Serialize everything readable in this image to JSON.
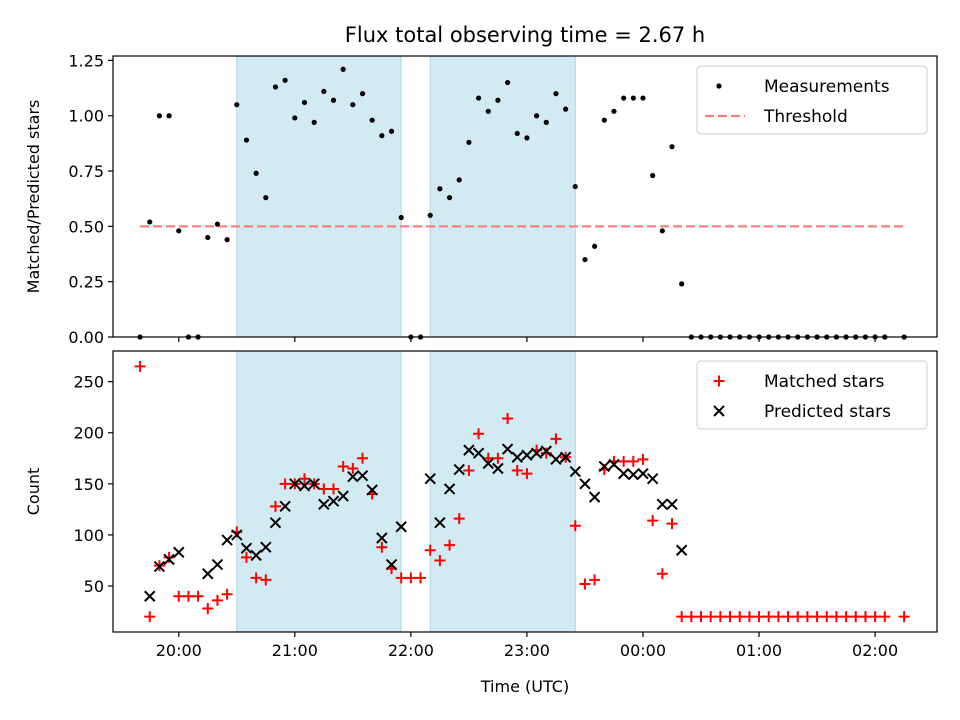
{
  "title": "Flux total observing time = 2.67 h",
  "chart_data": [
    {
      "type": "scatter",
      "ylabel": "Matched/Predicted stars",
      "xlim": [
        "19:26",
        "02:32"
      ],
      "ylim": [
        0,
        1.27
      ],
      "ticks_y": [
        0,
        0.25,
        0.5,
        0.75,
        1.0,
        1.25
      ],
      "tick_labels_y": [
        "0.00",
        "0.25",
        "0.50",
        "0.75",
        "1.00",
        "1.25"
      ],
      "shaded_intervals": [
        [
          "20:30",
          "21:55"
        ],
        [
          "22:10",
          "23:25"
        ]
      ],
      "legend_position": "upper right",
      "legend": [
        "Measurements",
        "Threshold"
      ],
      "threshold": {
        "name": "Threshold",
        "y": 0.5,
        "x_range": [
          "19:40",
          "02:15"
        ]
      },
      "series": [
        {
          "name": "Measurements",
          "marker": "dot",
          "color": "#000000",
          "points": [
            [
              "19:40",
              0.0
            ],
            [
              "19:45",
              0.52
            ],
            [
              "19:50",
              1.0
            ],
            [
              "19:55",
              1.0
            ],
            [
              "20:00",
              0.48
            ],
            [
              "20:05",
              0.0
            ],
            [
              "20:10",
              0.0
            ],
            [
              "20:15",
              0.45
            ],
            [
              "20:20",
              0.51
            ],
            [
              "20:25",
              0.44
            ],
            [
              "20:30",
              1.05
            ],
            [
              "20:35",
              0.89
            ],
            [
              "20:40",
              0.74
            ],
            [
              "20:45",
              0.63
            ],
            [
              "20:50",
              1.13
            ],
            [
              "20:55",
              1.16
            ],
            [
              "21:00",
              0.99
            ],
            [
              "21:05",
              1.06
            ],
            [
              "21:10",
              0.97
            ],
            [
              "21:15",
              1.11
            ],
            [
              "21:20",
              1.07
            ],
            [
              "21:25",
              1.21
            ],
            [
              "21:30",
              1.05
            ],
            [
              "21:35",
              1.1
            ],
            [
              "21:40",
              0.98
            ],
            [
              "21:45",
              0.91
            ],
            [
              "21:50",
              0.93
            ],
            [
              "21:55",
              0.54
            ],
            [
              "22:00",
              0.0
            ],
            [
              "22:05",
              0.0
            ],
            [
              "22:10",
              0.55
            ],
            [
              "22:15",
              0.67
            ],
            [
              "22:20",
              0.63
            ],
            [
              "22:25",
              0.71
            ],
            [
              "22:30",
              0.88
            ],
            [
              "22:35",
              1.08
            ],
            [
              "22:40",
              1.02
            ],
            [
              "22:45",
              1.07
            ],
            [
              "22:50",
              1.15
            ],
            [
              "22:55",
              0.92
            ],
            [
              "23:00",
              0.9
            ],
            [
              "23:05",
              1.0
            ],
            [
              "23:10",
              0.97
            ],
            [
              "23:15",
              1.1
            ],
            [
              "23:20",
              1.03
            ],
            [
              "23:25",
              0.68
            ],
            [
              "23:30",
              0.35
            ],
            [
              "23:35",
              0.41
            ],
            [
              "23:40",
              0.98
            ],
            [
              "23:45",
              1.02
            ],
            [
              "23:50",
              1.08
            ],
            [
              "23:55",
              1.08
            ],
            [
              "00:00",
              1.08
            ],
            [
              "00:05",
              0.73
            ],
            [
              "00:10",
              0.48
            ],
            [
              "00:15",
              0.86
            ],
            [
              "00:20",
              0.24
            ],
            [
              "00:25",
              0.0
            ],
            [
              "00:30",
              0.0
            ],
            [
              "00:35",
              0.0
            ],
            [
              "00:40",
              0.0
            ],
            [
              "00:45",
              0.0
            ],
            [
              "00:50",
              0.0
            ],
            [
              "00:55",
              0.0
            ],
            [
              "01:00",
              0.0
            ],
            [
              "01:05",
              0.0
            ],
            [
              "01:10",
              0.0
            ],
            [
              "01:15",
              0.0
            ],
            [
              "01:20",
              0.0
            ],
            [
              "01:25",
              0.0
            ],
            [
              "01:30",
              0.0
            ],
            [
              "01:35",
              0.0
            ],
            [
              "01:40",
              0.0
            ],
            [
              "01:45",
              0.0
            ],
            [
              "01:50",
              0.0
            ],
            [
              "01:55",
              0.0
            ],
            [
              "02:00",
              0.0
            ],
            [
              "02:05",
              0.0
            ],
            [
              "02:15",
              0.0
            ]
          ]
        }
      ]
    },
    {
      "type": "scatter",
      "xlabel": "Time (UTC)",
      "ylabel": "Count",
      "xlim": [
        "19:26",
        "02:32"
      ],
      "ylim": [
        5,
        280
      ],
      "ticks_y": [
        50,
        100,
        150,
        200,
        250
      ],
      "ticks_x": [
        "20:00",
        "21:00",
        "22:00",
        "23:00",
        "00:00",
        "01:00",
        "02:00"
      ],
      "shaded_intervals": [
        [
          "20:30",
          "21:55"
        ],
        [
          "22:10",
          "23:25"
        ]
      ],
      "legend_position": "upper right",
      "legend": [
        "Matched stars",
        "Predicted stars"
      ],
      "series": [
        {
          "name": "Matched stars",
          "marker": "plus",
          "color": "#ff0000",
          "points": [
            [
              "19:40",
              265
            ],
            [
              "19:45",
              20
            ],
            [
              "19:50",
              70
            ],
            [
              "19:55",
              78
            ],
            [
              "20:00",
              40
            ],
            [
              "20:05",
              40
            ],
            [
              "20:10",
              40
            ],
            [
              "20:15",
              28
            ],
            [
              "20:20",
              36
            ],
            [
              "20:25",
              42
            ],
            [
              "20:30",
              103
            ],
            [
              "20:35",
              78
            ],
            [
              "20:40",
              58
            ],
            [
              "20:45",
              56
            ],
            [
              "20:50",
              128
            ],
            [
              "20:55",
              150
            ],
            [
              "21:00",
              150
            ],
            [
              "21:05",
              155
            ],
            [
              "21:10",
              150
            ],
            [
              "21:15",
              145
            ],
            [
              "21:20",
              145
            ],
            [
              "21:25",
              167
            ],
            [
              "21:30",
              165
            ],
            [
              "21:35",
              175
            ],
            [
              "21:40",
              140
            ],
            [
              "21:45",
              88
            ],
            [
              "21:50",
              67
            ],
            [
              "21:55",
              58
            ],
            [
              "22:00",
              58
            ],
            [
              "22:05",
              58
            ],
            [
              "22:10",
              85
            ],
            [
              "22:15",
              75
            ],
            [
              "22:20",
              90
            ],
            [
              "22:25",
              116
            ],
            [
              "22:30",
              163
            ],
            [
              "22:35",
              199
            ],
            [
              "22:40",
              175
            ],
            [
              "22:45",
              175
            ],
            [
              "22:50",
              214
            ],
            [
              "22:55",
              163
            ],
            [
              "23:00",
              160
            ],
            [
              "23:05",
              183
            ],
            [
              "23:10",
              180
            ],
            [
              "23:15",
              194
            ],
            [
              "23:20",
              176
            ],
            [
              "23:25",
              109
            ],
            [
              "23:30",
              52
            ],
            [
              "23:35",
              56
            ],
            [
              "23:40",
              164
            ],
            [
              "23:45",
              172
            ],
            [
              "23:50",
              172
            ],
            [
              "23:55",
              172
            ],
            [
              "00:00",
              174
            ],
            [
              "00:05",
              114
            ],
            [
              "00:10",
              62
            ],
            [
              "00:15",
              111
            ],
            [
              "00:20",
              20
            ],
            [
              "00:25",
              20
            ],
            [
              "00:30",
              20
            ],
            [
              "00:35",
              20
            ],
            [
              "00:40",
              20
            ],
            [
              "00:45",
              20
            ],
            [
              "00:50",
              20
            ],
            [
              "00:55",
              20
            ],
            [
              "01:00",
              20
            ],
            [
              "01:05",
              20
            ],
            [
              "01:10",
              20
            ],
            [
              "01:15",
              20
            ],
            [
              "01:20",
              20
            ],
            [
              "01:25",
              20
            ],
            [
              "01:30",
              20
            ],
            [
              "01:35",
              20
            ],
            [
              "01:40",
              20
            ],
            [
              "01:45",
              20
            ],
            [
              "01:50",
              20
            ],
            [
              "01:55",
              20
            ],
            [
              "02:00",
              20
            ],
            [
              "02:05",
              20
            ],
            [
              "02:15",
              20
            ]
          ]
        },
        {
          "name": "Predicted stars",
          "marker": "x",
          "color": "#000000",
          "points": [
            [
              "19:45",
              40
            ],
            [
              "19:50",
              69
            ],
            [
              "19:55",
              76
            ],
            [
              "20:00",
              83
            ],
            [
              "20:15",
              62
            ],
            [
              "20:20",
              71
            ],
            [
              "20:25",
              95
            ],
            [
              "20:30",
              100
            ],
            [
              "20:35",
              87
            ],
            [
              "20:40",
              80
            ],
            [
              "20:45",
              88
            ],
            [
              "20:50",
              112
            ],
            [
              "20:55",
              128
            ],
            [
              "21:00",
              150
            ],
            [
              "21:05",
              148
            ],
            [
              "21:10",
              150
            ],
            [
              "21:15",
              130
            ],
            [
              "21:20",
              133
            ],
            [
              "21:25",
              138
            ],
            [
              "21:30",
              157
            ],
            [
              "21:35",
              158
            ],
            [
              "21:40",
              144
            ],
            [
              "21:45",
              97
            ],
            [
              "21:50",
              71
            ],
            [
              "21:55",
              108
            ],
            [
              "22:10",
              155
            ],
            [
              "22:15",
              112
            ],
            [
              "22:20",
              145
            ],
            [
              "22:25",
              164
            ],
            [
              "22:30",
              183
            ],
            [
              "22:35",
              180
            ],
            [
              "22:40",
              170
            ],
            [
              "22:45",
              165
            ],
            [
              "22:50",
              184
            ],
            [
              "22:55",
              176
            ],
            [
              "23:00",
              178
            ],
            [
              "23:05",
              180
            ],
            [
              "23:10",
              182
            ],
            [
              "23:15",
              174
            ],
            [
              "23:20",
              176
            ],
            [
              "23:25",
              162
            ],
            [
              "23:30",
              150
            ],
            [
              "23:35",
              137
            ],
            [
              "23:40",
              167
            ],
            [
              "23:45",
              169
            ],
            [
              "23:50",
              160
            ],
            [
              "23:55",
              159
            ],
            [
              "00:00",
              160
            ],
            [
              "00:05",
              155
            ],
            [
              "00:10",
              130
            ],
            [
              "00:15",
              130
            ],
            [
              "00:20",
              85
            ]
          ]
        }
      ]
    }
  ],
  "colors": {
    "shade": "#add8e6",
    "threshold": "#ff7f7f",
    "matched": "#ff0000",
    "predicted": "#000000",
    "measurements": "#000000"
  }
}
